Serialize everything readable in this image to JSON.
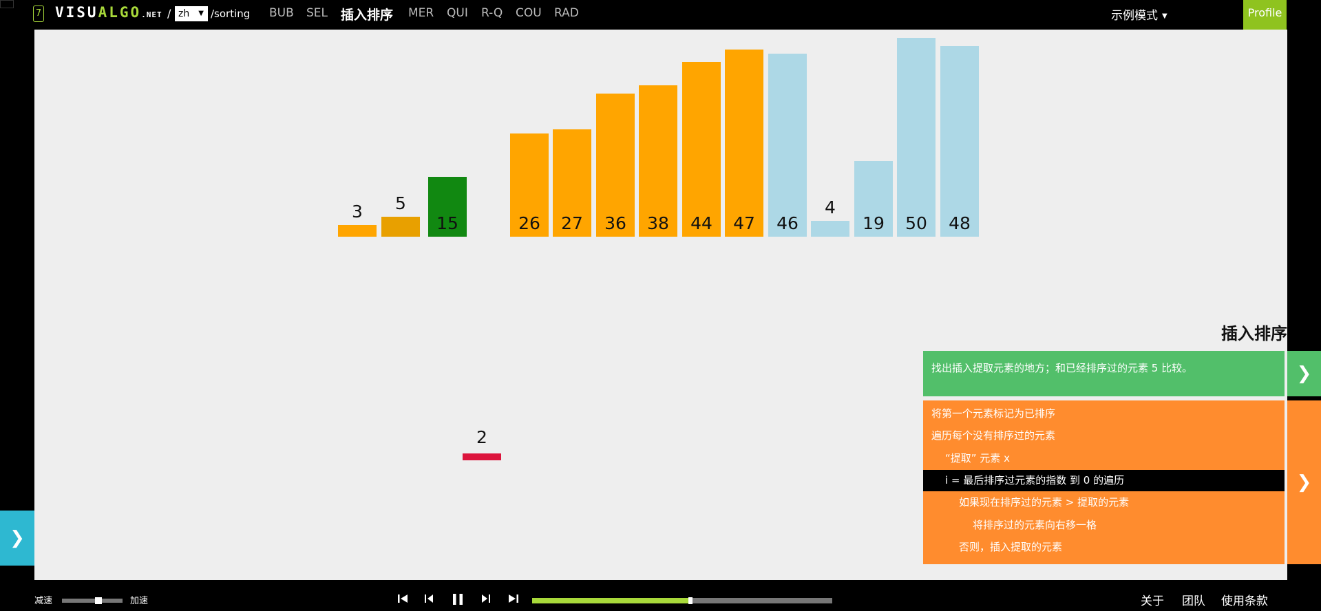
{
  "header": {
    "tab_number": "7",
    "logo_white": "VISU",
    "logo_green": "ALGO",
    "logo_net": ".NET",
    "slash": "/",
    "language": "zh",
    "path": "/sorting",
    "nav": [
      {
        "label": "BUB",
        "active": false
      },
      {
        "label": "SEL",
        "active": false
      },
      {
        "label": "插入排序",
        "active": true
      },
      {
        "label": "MER",
        "active": false
      },
      {
        "label": "QUI",
        "active": false
      },
      {
        "label": "R-Q",
        "active": false
      },
      {
        "label": "COU",
        "active": false
      },
      {
        "label": "RAD",
        "active": false
      }
    ],
    "mode": "示例模式",
    "profile": "Profile"
  },
  "array": {
    "bars": [
      {
        "value": 3,
        "state": "sorted",
        "color": "#ffa500"
      },
      {
        "value": 5,
        "state": "comparing",
        "color": "#e8a000"
      },
      {
        "value": 15,
        "state": "current",
        "color": "#118811"
      },
      {
        "value": 26,
        "state": "sorted",
        "color": "#ffa500"
      },
      {
        "value": 27,
        "state": "sorted",
        "color": "#ffa500"
      },
      {
        "value": 36,
        "state": "sorted",
        "color": "#ffa500"
      },
      {
        "value": 38,
        "state": "sorted",
        "color": "#ffa500"
      },
      {
        "value": 44,
        "state": "sorted",
        "color": "#ffa500"
      },
      {
        "value": 47,
        "state": "sorted",
        "color": "#ffa500"
      },
      {
        "value": 46,
        "state": "unsorted",
        "color": "#add8e6"
      },
      {
        "value": 4,
        "state": "unsorted",
        "color": "#add8e6"
      },
      {
        "value": 19,
        "state": "unsorted",
        "color": "#add8e6"
      },
      {
        "value": 50,
        "state": "unsorted",
        "color": "#add8e6"
      },
      {
        "value": 48,
        "state": "unsorted",
        "color": "#add8e6"
      }
    ],
    "extracted": {
      "value": 2,
      "color": "#dc143c"
    }
  },
  "panel": {
    "title": "插入排序",
    "status": "找出插入提取元素的地方；和已经排序过的元素 5 比较。",
    "code": [
      {
        "text": "将第一个元素标记为已排序",
        "indent": 0,
        "highlight": false
      },
      {
        "text": "遍历每个没有排序过的元素",
        "indent": 0,
        "highlight": false
      },
      {
        "text": "“提取” 元素 x",
        "indent": 1,
        "highlight": false
      },
      {
        "text": "i = 最后排序过元素的指数 到 0 的遍历",
        "indent": 1,
        "highlight": true
      },
      {
        "text": "如果现在排序过的元素 > 提取的元素",
        "indent": 2,
        "highlight": false
      },
      {
        "text": "将排序过的元素向右移一格",
        "indent": 3,
        "highlight": false
      },
      {
        "text": "否则，插入提取的元素",
        "indent": 2,
        "highlight": false
      }
    ],
    "status_color": "#52bf6a",
    "code_color": "#ff8c2e"
  },
  "controls": {
    "slow": "减速",
    "fast": "加速",
    "speed_level": 0.6,
    "progress": 0.52
  },
  "footer": {
    "about": "关于",
    "team": "团队",
    "terms": "使用条款"
  },
  "icons": {
    "status_next": "chevron-right-icon",
    "code_next": "chevron-right-icon",
    "left_panel": "chevron-right-icon",
    "first": "skip-back-icon",
    "prev": "step-back-icon",
    "pause": "pause-icon",
    "next": "step-forward-icon",
    "last": "skip-forward-icon"
  }
}
